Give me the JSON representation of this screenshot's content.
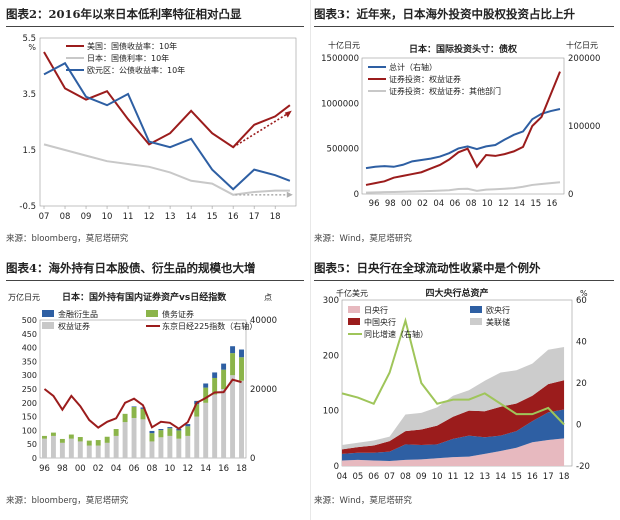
{
  "panels": [
    {
      "title": "图表2：2016年以来日本低利率特征相对凸显",
      "source": "来源：bloomberg，莫尼塔研究",
      "chart_data": {
        "type": "line",
        "title": "",
        "unit_left": "%",
        "x": [
          2007,
          2008,
          2009,
          2010,
          2011,
          2012,
          2013,
          2014,
          2015,
          2016,
          2017,
          2018,
          2018.7
        ],
        "xticks": [
          "07",
          "08",
          "09",
          "10",
          "11",
          "12",
          "13",
          "14",
          "15",
          "16",
          "17",
          "18"
        ],
        "xtick_values": [
          2007,
          2008,
          2009,
          2010,
          2011,
          2012,
          2013,
          2014,
          2015,
          2016,
          2017,
          2018
        ],
        "ylim": [
          -0.5,
          5.5
        ],
        "yticks": [
          "-0.5",
          "1.5",
          "3.5",
          "5.5"
        ],
        "ytick_values": [
          -0.5,
          1.5,
          3.5,
          5.5
        ],
        "series": [
          {
            "name": "美国：国债收益率：10年",
            "color": "#9b1c1c",
            "values": [
              5.0,
              3.7,
              3.3,
              3.6,
              2.6,
              1.7,
              2.1,
              2.9,
              2.1,
              1.6,
              2.4,
              2.7,
              3.1
            ]
          },
          {
            "name": "日本：国债利率：10年",
            "color": "#c8c8c8",
            "values": [
              1.7,
              1.5,
              1.3,
              1.1,
              1.0,
              0.9,
              0.7,
              0.4,
              0.3,
              -0.1,
              0.0,
              0.05,
              0.05
            ]
          },
          {
            "name": "欧元区：公债收益率：10年",
            "color": "#2e5fa3",
            "values": [
              4.2,
              4.6,
              3.4,
              3.1,
              3.5,
              1.8,
              1.6,
              1.9,
              0.8,
              0.1,
              0.8,
              0.6,
              0.4
            ]
          }
        ],
        "trend_us": [
          [
            2016,
            1.6
          ],
          [
            2018.6,
            2.8
          ]
        ],
        "trend_jp": [
          [
            2016.1,
            -0.1
          ],
          [
            2018.6,
            -0.1
          ]
        ]
      }
    },
    {
      "title": "图表3：近年来，日本海外投资中股权投资占比上升",
      "source": "来源：Wind，莫尼塔研究",
      "chart_data": {
        "type": "line",
        "title": "日本：国际投资头寸：债权",
        "unit_left": "十亿日元",
        "unit_right": "十亿日元",
        "x": [
          1996,
          1997,
          1998,
          1999,
          2000,
          2001,
          2002,
          2003,
          2004,
          2005,
          2006,
          2007,
          2008,
          2009,
          2010,
          2011,
          2012,
          2013,
          2014,
          2015,
          2016,
          2017
        ],
        "xticks": [
          "96",
          "98",
          "00",
          "02",
          "04",
          "06",
          "08",
          "10",
          "12",
          "14",
          "15",
          "16"
        ],
        "xtick_values": [
          1996,
          1998,
          2000,
          2002,
          2004,
          2006,
          2008,
          2010,
          2012,
          2014,
          2015,
          2016
        ],
        "ylim_left": [
          0,
          1500000
        ],
        "yticks_left": [
          "0",
          "500000",
          "1000000",
          "1500000"
        ],
        "ytick_values_left": [
          0,
          500000,
          1000000,
          1500000
        ],
        "ylim_right": [
          0,
          200000
        ],
        "yticks_right": [
          "0",
          "100000",
          "200000"
        ],
        "ytick_values_right": [
          0,
          100000,
          200000
        ],
        "series": [
          {
            "name": "总计（右轴）",
            "axis": "right",
            "color": "#2e5fa3",
            "values": [
              38000,
              40000,
              41000,
              40000,
              43000,
              48000,
              50000,
              52000,
              55000,
              60000,
              67000,
              70000,
              66000,
              70000,
              72000,
              80000,
              87000,
              92000,
              110000,
              118000,
              122000,
              125000
            ]
          },
          {
            "name": "证券投资：权益证券",
            "axis": "left",
            "color": "#9b1c1c",
            "values": [
              100000,
              120000,
              140000,
              180000,
              200000,
              220000,
              240000,
              280000,
              320000,
              380000,
              460000,
              500000,
              300000,
              430000,
              420000,
              440000,
              470000,
              520000,
              750000,
              850000,
              1100000,
              1350000
            ]
          },
          {
            "name": "证券投资：权益证券：其他部门",
            "axis": "left",
            "color": "#c8c8c8",
            "values": [
              15000,
              18000,
              20000,
              22000,
              25000,
              28000,
              30000,
              33000,
              37000,
              42000,
              55000,
              58000,
              35000,
              48000,
              52000,
              58000,
              65000,
              80000,
              100000,
              110000,
              120000,
              130000
            ]
          }
        ]
      }
    },
    {
      "title": "图表4：海外持有日本股债、衍生品的规模也大增",
      "source": "来源：bloomberg，莫尼塔研究",
      "chart_data": {
        "type": "bar",
        "title": "日本：国外持有国内证券资产vs日经指数",
        "unit_left": "万亿日元",
        "unit_right": "点",
        "x": [
          1996,
          1997,
          1998,
          1999,
          2000,
          2001,
          2002,
          2003,
          2004,
          2005,
          2006,
          2007,
          2008,
          2009,
          2010,
          2011,
          2012,
          2013,
          2014,
          2015,
          2016,
          2017,
          2018
        ],
        "xticks": [
          "96",
          "98",
          "00",
          "02",
          "04",
          "06",
          "08",
          "10",
          "12",
          "14",
          "16",
          "18"
        ],
        "xtick_values": [
          1996,
          1998,
          2000,
          2002,
          2004,
          2006,
          2008,
          2010,
          2012,
          2014,
          2016,
          2018
        ],
        "ylim_left": [
          0,
          500
        ],
        "yticks_left": [
          "0",
          "50",
          "100",
          "150",
          "200",
          "250",
          "300",
          "350",
          "400",
          "450",
          "500"
        ],
        "ytick_values_left": [
          0,
          50,
          100,
          150,
          200,
          250,
          300,
          350,
          400,
          450,
          500
        ],
        "ylim_right": [
          0,
          40000
        ],
        "yticks_right": [
          "0",
          "20000",
          "40000"
        ],
        "ytick_values_right": [
          0,
          20000,
          40000
        ],
        "stacked_bars": [
          {
            "name": "金融衍生品",
            "color": "#2e5fa3",
            "values": [
              0,
              0,
              0,
              0,
              0,
              0,
              0,
              0,
              0,
              0,
              2,
              5,
              8,
              4,
              4,
              6,
              8,
              12,
              15,
              20,
              22,
              25,
              28
            ]
          },
          {
            "name": "债务证券",
            "color": "#8bb44a",
            "values": [
              10,
              12,
              14,
              15,
              16,
              18,
              20,
              22,
              25,
              30,
              40,
              38,
              30,
              26,
              28,
              30,
              35,
              45,
              55,
              60,
              70,
              80,
              85
            ]
          },
          {
            "name": "权益证券",
            "color": "#c8c8c8",
            "values": [
              70,
              80,
              55,
              70,
              60,
              45,
              45,
              55,
              80,
              130,
              145,
              140,
              60,
              75,
              80,
              70,
              80,
              150,
              200,
              230,
              250,
              300,
              280
            ]
          }
        ],
        "line": {
          "name": "东京日经225指数（右轴）",
          "axis": "right",
          "color": "#9b1c1c",
          "values": [
            20000,
            18000,
            14000,
            18000,
            15000,
            11000,
            8800,
            10500,
            11500,
            16000,
            17200,
            15300,
            8900,
            10500,
            10200,
            8500,
            10400,
            16000,
            17400,
            19000,
            19100,
            22700,
            22000
          ]
        }
      }
    },
    {
      "title": "图表5：日央行在全球流动性收紧中是个例外",
      "source": "来源：Wind，莫尼塔研究",
      "chart_data": {
        "type": "area",
        "title": "四大央行总资产",
        "unit_left": "千亿美元",
        "unit_right": "%",
        "x": [
          2004,
          2005,
          2006,
          2007,
          2008,
          2009,
          2010,
          2011,
          2012,
          2013,
          2014,
          2015,
          2016,
          2017,
          2018
        ],
        "xticks": [
          "04",
          "05",
          "06",
          "07",
          "08",
          "09",
          "10",
          "11",
          "12",
          "13",
          "14",
          "15",
          "16",
          "17",
          "18"
        ],
        "xtick_values": [
          2004,
          2005,
          2006,
          2007,
          2008,
          2009,
          2010,
          2011,
          2012,
          2013,
          2014,
          2015,
          2016,
          2017,
          2018
        ],
        "ylim_left": [
          0,
          300
        ],
        "yticks_left": [
          "0",
          "100",
          "200",
          "300"
        ],
        "ytick_values_left": [
          0,
          100,
          200,
          300
        ],
        "ylim_right": [
          -20,
          60
        ],
        "yticks_right": [
          "-20",
          "0",
          "20",
          "40",
          "60"
        ],
        "ytick_values_right": [
          -20,
          0,
          20,
          40,
          60
        ],
        "stacked_areas": [
          {
            "name": "日央行",
            "color": "#e7b9bf",
            "values": [
              10,
              11,
              10,
              9,
              11,
              12,
              14,
              16,
              17,
              22,
              27,
              33,
              43,
              47,
              50
            ]
          },
          {
            "name": "欧央行",
            "color": "#2e5fa3",
            "values": [
              12,
              13,
              14,
              17,
              28,
              26,
              25,
              33,
              38,
              30,
              28,
              30,
              38,
              50,
              52
            ]
          },
          {
            "name": "中国央行",
            "color": "#9b1c1c",
            "values": [
              8,
              10,
              13,
              19,
              24,
              28,
              34,
              40,
              45,
              47,
              52,
              50,
              46,
              51,
              53
            ]
          },
          {
            "name": "美联储",
            "color": "#cccccc",
            "values": [
              8,
              8,
              9,
              8,
              30,
              30,
              33,
              38,
              37,
              55,
              62,
              60,
              58,
              62,
              60
            ]
          }
        ],
        "line": {
          "name": "同比增速（右轴）",
          "axis": "right",
          "color": "#9fc55a",
          "values": [
            15,
            13,
            10,
            25,
            50,
            20,
            10,
            12,
            12,
            15,
            10,
            5,
            5,
            8,
            0
          ]
        }
      }
    }
  ]
}
